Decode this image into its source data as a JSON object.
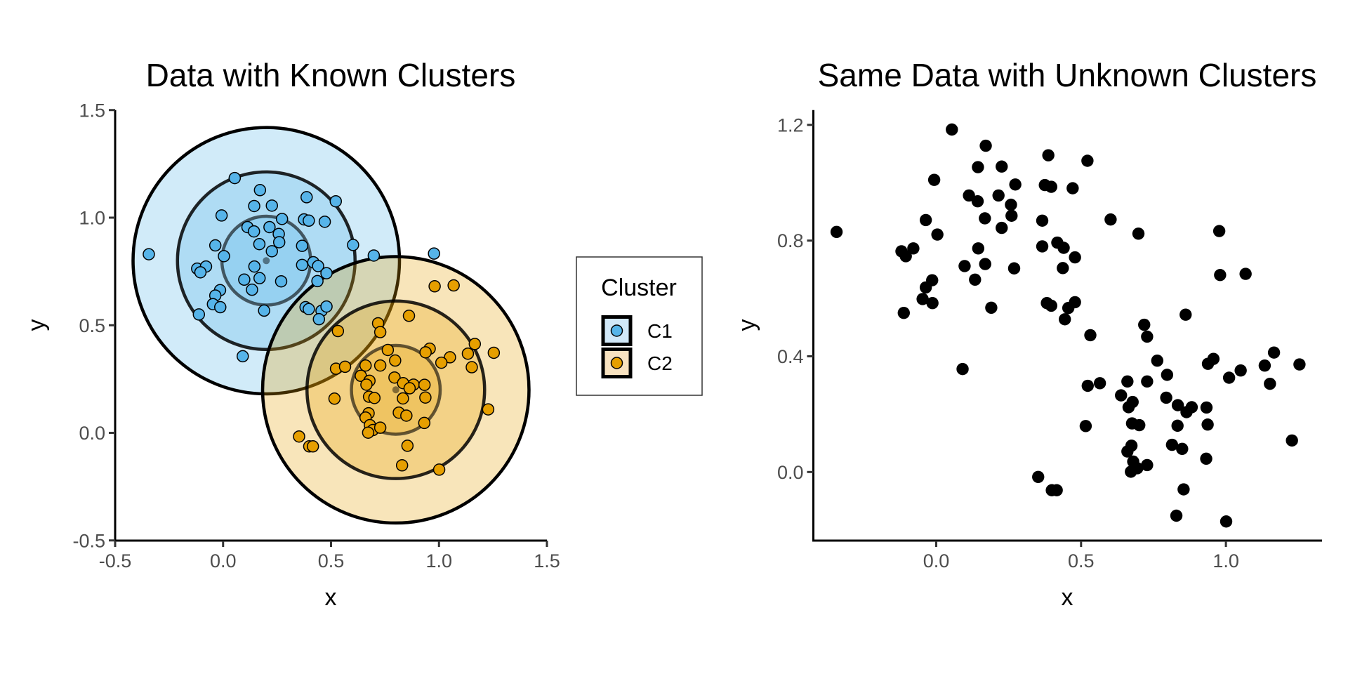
{
  "colors": {
    "C1": "#56B4E9",
    "C2": "#E69F00",
    "unknown": "#000000"
  },
  "legend": {
    "title": "Cluster",
    "items": [
      {
        "key": "C1",
        "label": "C1"
      },
      {
        "key": "C2",
        "label": "C2"
      }
    ]
  },
  "chart_data": [
    {
      "type": "scatter",
      "title": "Data with Known Clusters",
      "xlabel": "x",
      "ylabel": "y",
      "xlim": [
        -0.5,
        1.5
      ],
      "ylim": [
        -0.5,
        1.5
      ],
      "xticks": [
        "-0.5",
        "0.0",
        "0.5",
        "1.0",
        "1.5"
      ],
      "yticks": [
        "-0.5",
        "0.0",
        "0.5",
        "1.0",
        "1.5"
      ],
      "xtick_values": [
        -0.5,
        0,
        0.5,
        1,
        1.5
      ],
      "ytick_values": [
        -0.5,
        0,
        0.5,
        1,
        1.5
      ],
      "grid": false,
      "legend_position": "right",
      "clusters": [
        {
          "name": "C1",
          "center": [
            0.2,
            0.8
          ],
          "rings": [
            0.206,
            0.412,
            0.618
          ]
        },
        {
          "name": "C2",
          "center": [
            0.8,
            0.2
          ],
          "rings": [
            0.206,
            0.412,
            0.618
          ]
        }
      ],
      "series": [
        {
          "name": "C1",
          "points": [
            [
              0.054,
              1.184
            ],
            [
              0.171,
              1.128
            ],
            [
              0.387,
              1.095
            ],
            [
              0.144,
              1.054
            ],
            [
              0.226,
              1.056
            ],
            [
              -0.007,
              1.01
            ],
            [
              0.273,
              0.994
            ],
            [
              0.375,
              0.992
            ],
            [
              0.397,
              0.986
            ],
            [
              0.471,
              0.981
            ],
            [
              0.113,
              0.956
            ],
            [
              0.143,
              0.936
            ],
            [
              0.215,
              0.956
            ],
            [
              0.258,
              0.924
            ],
            [
              0.26,
              0.886
            ],
            [
              0.168,
              0.877
            ],
            [
              0.226,
              0.844
            ],
            [
              0.366,
              0.869
            ],
            [
              -0.036,
              0.871
            ],
            [
              -0.344,
              0.83
            ],
            [
              0.004,
              0.821
            ],
            [
              -0.12,
              0.763
            ],
            [
              -0.079,
              0.773
            ],
            [
              -0.105,
              0.746
            ],
            [
              0.145,
              0.773
            ],
            [
              0.098,
              0.712
            ],
            [
              0.169,
              0.719
            ],
            [
              0.134,
              0.665
            ],
            [
              0.269,
              0.704
            ],
            [
              0.366,
              0.78
            ],
            [
              0.418,
              0.793
            ],
            [
              0.44,
              0.775
            ],
            [
              0.479,
              0.742
            ],
            [
              0.437,
              0.705
            ],
            [
              -0.014,
              0.663
            ],
            [
              -0.036,
              0.638
            ],
            [
              -0.047,
              0.598
            ],
            [
              -0.013,
              0.584
            ],
            [
              -0.112,
              0.55
            ],
            [
              0.19,
              0.568
            ],
            [
              0.382,
              0.584
            ],
            [
              0.397,
              0.575
            ],
            [
              0.456,
              0.567
            ],
            [
              0.444,
              0.528
            ],
            [
              0.479,
              0.587
            ],
            [
              0.522,
              1.076
            ],
            [
              0.602,
              0.873
            ],
            [
              0.698,
              0.824
            ],
            [
              0.977,
              0.833
            ],
            [
              0.091,
              0.356
            ]
          ]
        },
        {
          "name": "C2",
          "points": [
            [
              0.98,
              0.681
            ],
            [
              1.068,
              0.685
            ],
            [
              0.861,
              0.544
            ],
            [
              0.718,
              0.509
            ],
            [
              0.728,
              0.468
            ],
            [
              0.532,
              0.473
            ],
            [
              0.763,
              0.385
            ],
            [
              0.797,
              0.336
            ],
            [
              0.957,
              0.391
            ],
            [
              0.938,
              0.374
            ],
            [
              1.166,
              0.413
            ],
            [
              1.134,
              0.368
            ],
            [
              1.254,
              0.372
            ],
            [
              1.051,
              0.351
            ],
            [
              1.011,
              0.326
            ],
            [
              1.152,
              0.305
            ],
            [
              0.523,
              0.298
            ],
            [
              0.565,
              0.307
            ],
            [
              0.66,
              0.313
            ],
            [
              0.728,
              0.313
            ],
            [
              0.638,
              0.265
            ],
            [
              0.678,
              0.242
            ],
            [
              0.664,
              0.224
            ],
            [
              0.794,
              0.257
            ],
            [
              0.834,
              0.231
            ],
            [
              0.882,
              0.224
            ],
            [
              0.864,
              0.207
            ],
            [
              0.933,
              0.223
            ],
            [
              0.516,
              0.159
            ],
            [
              0.676,
              0.168
            ],
            [
              0.701,
              0.162
            ],
            [
              0.833,
              0.16
            ],
            [
              0.937,
              0.164
            ],
            [
              1.228,
              0.109
            ],
            [
              0.674,
              0.091
            ],
            [
              0.66,
              0.071
            ],
            [
              0.814,
              0.094
            ],
            [
              0.849,
              0.08
            ],
            [
              0.932,
              0.046
            ],
            [
              0.68,
              0.036
            ],
            [
              0.694,
              0.013
            ],
            [
              0.672,
              0.001
            ],
            [
              0.728,
              0.024
            ],
            [
              0.352,
              -0.017
            ],
            [
              0.399,
              -0.063
            ],
            [
              0.416,
              -0.063
            ],
            [
              0.854,
              -0.06
            ],
            [
              0.829,
              -0.151
            ],
            [
              1.001,
              -0.171
            ]
          ]
        }
      ]
    },
    {
      "type": "scatter",
      "title": "Same Data with Unknown Clusters",
      "xlabel": "x",
      "ylabel": "y",
      "xlim": [
        -0.42,
        1.34
      ],
      "ylim": [
        -0.24,
        1.25
      ],
      "xticks": [
        "0.0",
        "0.5",
        "1.0"
      ],
      "yticks": [
        "0.0",
        "0.4",
        "0.8",
        "1.2"
      ],
      "xtick_values": [
        0,
        0.5,
        1
      ],
      "ytick_values": [
        0,
        0.4,
        0.8,
        1.2
      ],
      "grid": false,
      "points_from_chart": 0
    }
  ]
}
